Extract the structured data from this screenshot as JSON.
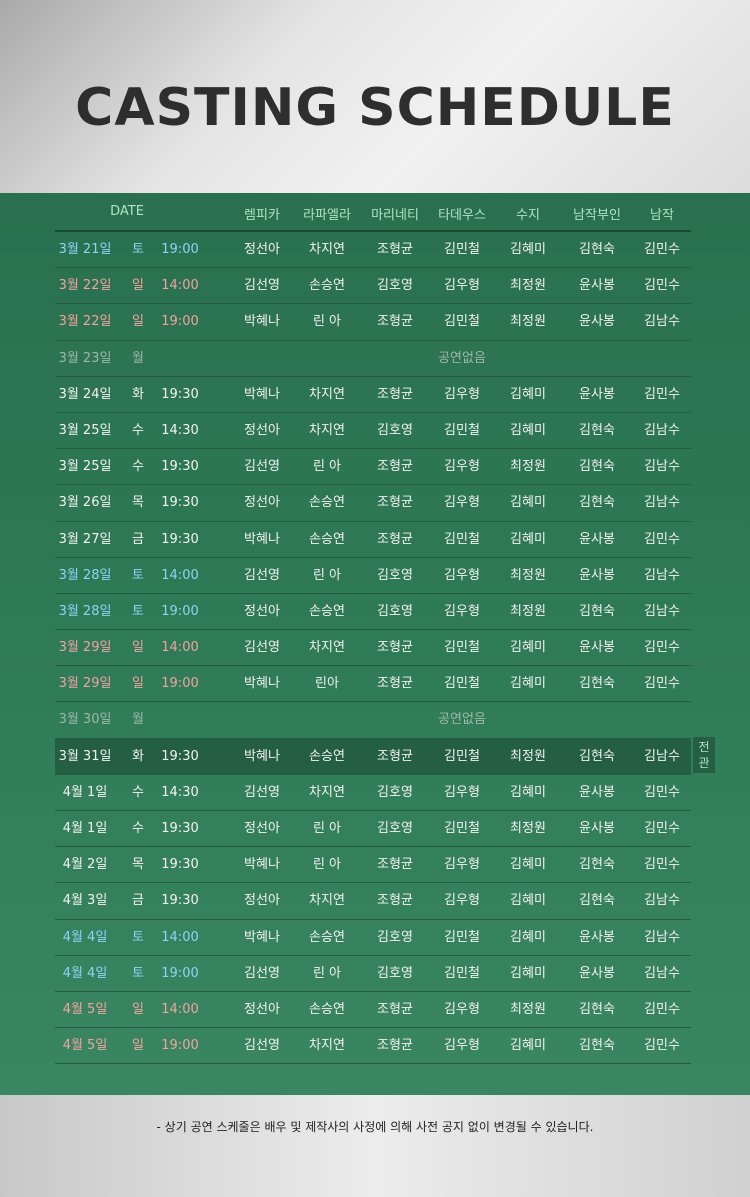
{
  "title": "CASTING SCHEDULE",
  "header": {
    "date": "DATE",
    "roles": [
      "렘피카",
      "라파엘라",
      "마리네티",
      "타데우스",
      "수지",
      "남작부인",
      "남작"
    ]
  },
  "no_show_label": "공연없음",
  "special_tag": "전관",
  "colors": {
    "saturday": "#8fd3f5",
    "sunday": "#f2a3a0",
    "off": "#9cb8aa",
    "background": "#2f7a57"
  },
  "rows": [
    {
      "date": "3월 21일",
      "day": "토",
      "time": "19:00",
      "type": "sat",
      "cast": [
        "정선아",
        "차지연",
        "조형균",
        "김민철",
        "김혜미",
        "김현숙",
        "김민수"
      ]
    },
    {
      "date": "3월 22일",
      "day": "일",
      "time": "14:00",
      "type": "sun",
      "cast": [
        "김선영",
        "손승연",
        "김호영",
        "김우형",
        "최정원",
        "윤사봉",
        "김민수"
      ]
    },
    {
      "date": "3월 22일",
      "day": "일",
      "time": "19:00",
      "type": "sun",
      "cast": [
        "박혜나",
        "린 아",
        "조형균",
        "김민철",
        "최정원",
        "윤사봉",
        "김남수"
      ]
    },
    {
      "date": "3월 23일",
      "day": "월",
      "time": "",
      "type": "off",
      "cast": []
    },
    {
      "date": "3월 24일",
      "day": "화",
      "time": "19:30",
      "type": "normal",
      "cast": [
        "박혜나",
        "차지연",
        "조형균",
        "김우형",
        "김혜미",
        "윤사봉",
        "김민수"
      ]
    },
    {
      "date": "3월 25일",
      "day": "수",
      "time": "14:30",
      "type": "normal",
      "cast": [
        "정선아",
        "차지연",
        "김호영",
        "김민철",
        "김혜미",
        "김현숙",
        "김남수"
      ]
    },
    {
      "date": "3월 25일",
      "day": "수",
      "time": "19:30",
      "type": "normal",
      "cast": [
        "김선영",
        "린 아",
        "조형균",
        "김우형",
        "최정원",
        "김현숙",
        "김남수"
      ]
    },
    {
      "date": "3월 26일",
      "day": "목",
      "time": "19:30",
      "type": "normal",
      "cast": [
        "정선아",
        "손승연",
        "조형균",
        "김우형",
        "김혜미",
        "김현숙",
        "김남수"
      ]
    },
    {
      "date": "3월 27일",
      "day": "금",
      "time": "19:30",
      "type": "normal",
      "cast": [
        "박혜나",
        "손승연",
        "조형균",
        "김민철",
        "김혜미",
        "윤사봉",
        "김민수"
      ]
    },
    {
      "date": "3월 28일",
      "day": "토",
      "time": "14:00",
      "type": "sat",
      "cast": [
        "김선영",
        "린 아",
        "김호영",
        "김우형",
        "최정원",
        "윤사봉",
        "김남수"
      ]
    },
    {
      "date": "3월 28일",
      "day": "토",
      "time": "19:00",
      "type": "sat",
      "cast": [
        "정선아",
        "손승연",
        "김호영",
        "김우형",
        "최정원",
        "김현숙",
        "김남수"
      ]
    },
    {
      "date": "3월 29일",
      "day": "일",
      "time": "14:00",
      "type": "sun",
      "cast": [
        "김선영",
        "차지연",
        "조형균",
        "김민철",
        "김혜미",
        "윤사봉",
        "김민수"
      ]
    },
    {
      "date": "3월 29일",
      "day": "일",
      "time": "19:00",
      "type": "sun",
      "cast": [
        "박혜나",
        "린아",
        "조형균",
        "김민철",
        "김혜미",
        "김현숙",
        "김민수"
      ]
    },
    {
      "date": "3월 30일",
      "day": "월",
      "time": "",
      "type": "off",
      "cast": []
    },
    {
      "date": "3월 31일",
      "day": "화",
      "time": "19:30",
      "type": "hl",
      "cast": [
        "박혜나",
        "손승연",
        "조형균",
        "김민철",
        "최정원",
        "김현숙",
        "김남수"
      ]
    },
    {
      "date": "4월 1일",
      "day": "수",
      "time": "14:30",
      "type": "normal",
      "cast": [
        "김선영",
        "차지연",
        "김호영",
        "김우형",
        "김혜미",
        "윤사봉",
        "김민수"
      ]
    },
    {
      "date": "4월 1일",
      "day": "수",
      "time": "19:30",
      "type": "normal",
      "cast": [
        "정선아",
        "린 아",
        "김호영",
        "김민철",
        "최정원",
        "윤사봉",
        "김민수"
      ]
    },
    {
      "date": "4월 2일",
      "day": "목",
      "time": "19:30",
      "type": "normal",
      "cast": [
        "박혜나",
        "린 아",
        "조형균",
        "김우형",
        "김혜미",
        "김현숙",
        "김민수"
      ]
    },
    {
      "date": "4월 3일",
      "day": "금",
      "time": "19:30",
      "type": "normal",
      "cast": [
        "정선아",
        "차지연",
        "조형균",
        "김우형",
        "김혜미",
        "김현숙",
        "김남수"
      ]
    },
    {
      "date": "4월 4일",
      "day": "토",
      "time": "14:00",
      "type": "sat",
      "cast": [
        "박혜나",
        "손승연",
        "김호영",
        "김민철",
        "김혜미",
        "윤사봉",
        "김남수"
      ]
    },
    {
      "date": "4월 4일",
      "day": "토",
      "time": "19:00",
      "type": "sat",
      "cast": [
        "김선영",
        "린 아",
        "김호영",
        "김민철",
        "김혜미",
        "윤사봉",
        "김남수"
      ]
    },
    {
      "date": "4월 5일",
      "day": "일",
      "time": "14:00",
      "type": "sun",
      "cast": [
        "정선아",
        "손승연",
        "조형균",
        "김우형",
        "최정원",
        "김현숙",
        "김민수"
      ]
    },
    {
      "date": "4월 5일",
      "day": "일",
      "time": "19:00",
      "type": "sun",
      "cast": [
        "김선영",
        "차지연",
        "조형균",
        "김우형",
        "김혜미",
        "김현숙",
        "김민수"
      ]
    }
  ],
  "footnote": "-  상기 공연 스케줄은 배우 및 제작사의 사정에 의해 사전 공지 없이 변경될 수 있습니다."
}
